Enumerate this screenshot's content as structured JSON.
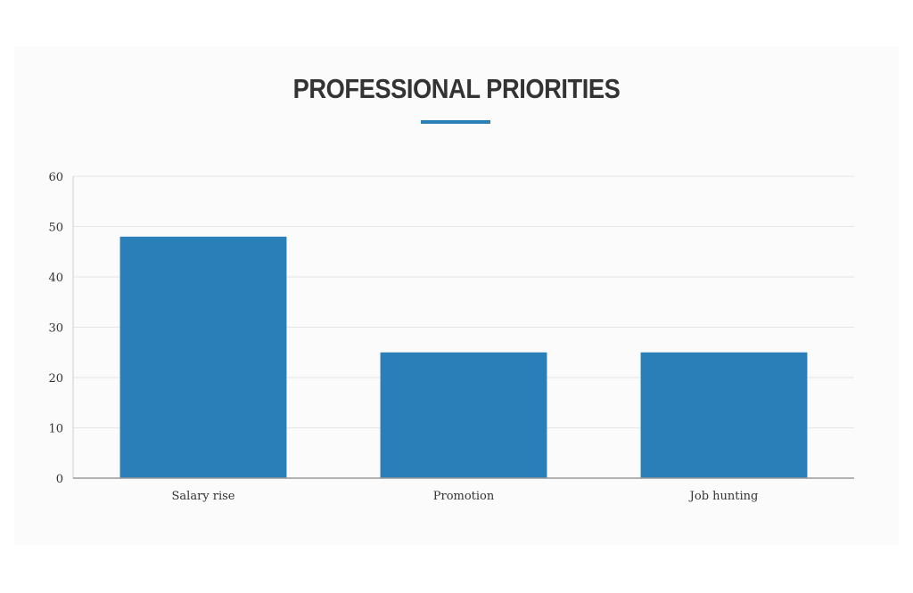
{
  "title": "PROFESSIONAL PRIORITIES",
  "colors": {
    "bar": "#2a7fb8",
    "accent": "#2a7fb8",
    "title": "#333333",
    "grid": "#e6e6e6",
    "axis": "#999999"
  },
  "chart_data": {
    "type": "bar",
    "categories": [
      "Salary rise",
      "Promotion",
      "Job hunting"
    ],
    "values": [
      48,
      25,
      25
    ],
    "title": "PROFESSIONAL PRIORITIES",
    "xlabel": "",
    "ylabel": "",
    "ylim": [
      0,
      60
    ],
    "yticks": [
      0,
      10,
      20,
      30,
      40,
      50,
      60
    ],
    "grid": true,
    "legend": "none"
  }
}
